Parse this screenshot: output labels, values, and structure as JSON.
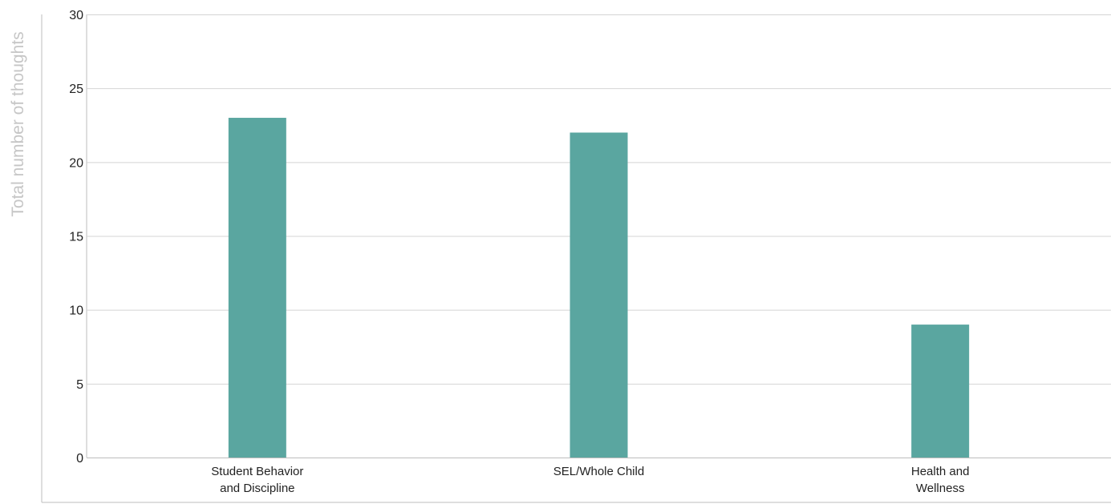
{
  "chart_data": {
    "type": "bar",
    "title": "",
    "xlabel": "",
    "ylabel": "Total number of thoughts",
    "categories": [
      [
        "Student Behavior",
        "and Discipline"
      ],
      [
        "SEL/Whole Child"
      ],
      [
        "Health and",
        "Wellness"
      ]
    ],
    "values": [
      23,
      22,
      9
    ],
    "ylim": [
      0,
      30
    ],
    "yticks": [
      "0",
      "5",
      "10",
      "15",
      "20",
      "25",
      "30"
    ],
    "grid": true,
    "legend": "none",
    "colors": {
      "bar": "#5aa6a0",
      "grid": "#d4d4d4",
      "axis": "#bdbdbd",
      "tick_text": "#222222",
      "ylabel": "#c6c6c6"
    }
  }
}
